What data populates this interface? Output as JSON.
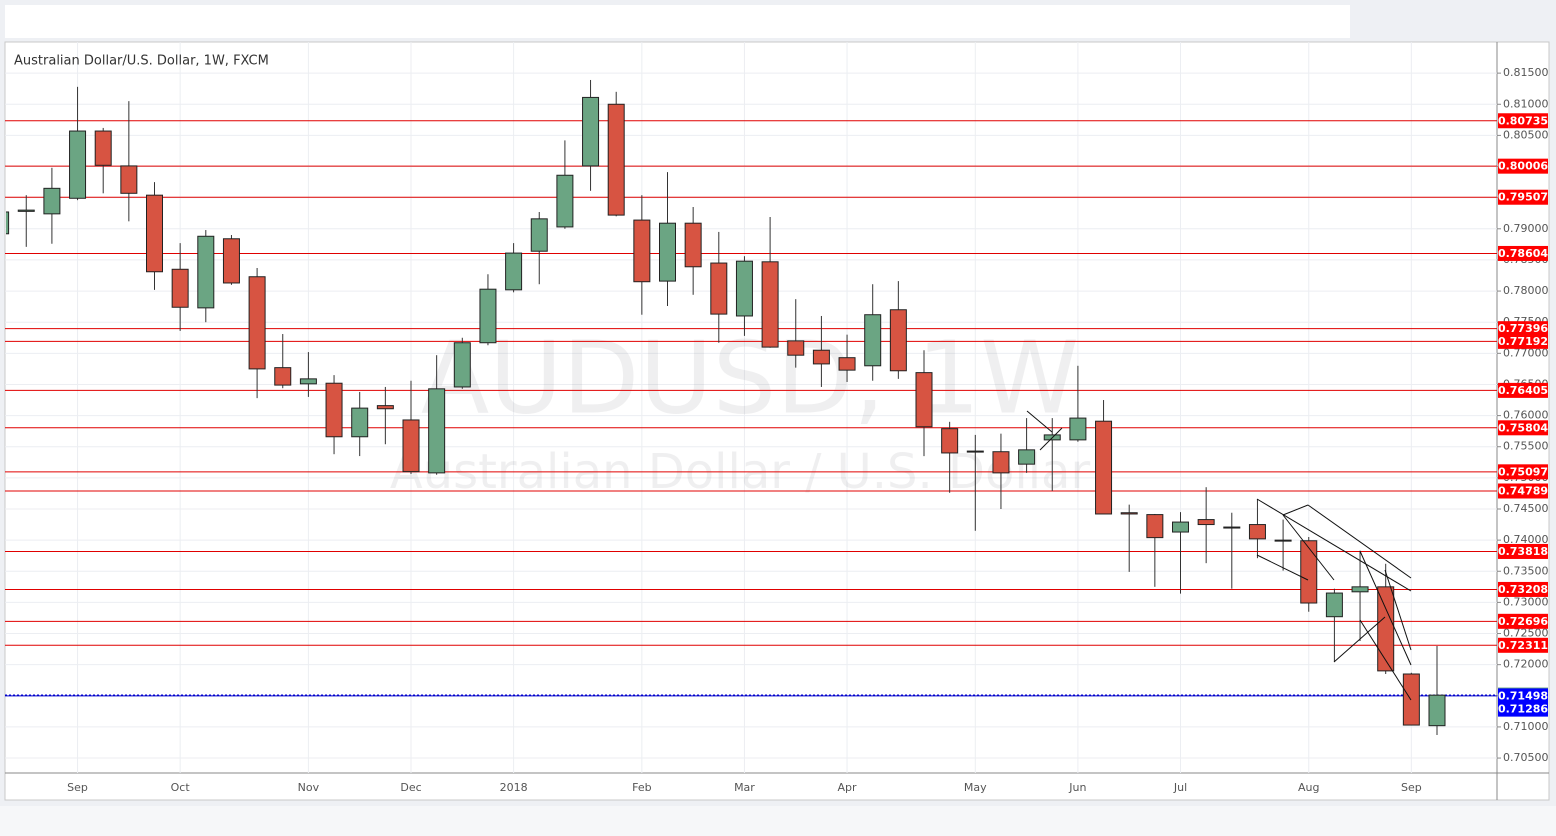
{
  "chart_data": {
    "type": "candlestick",
    "title": "Australian Dollar/U.S. Dollar, 1W, FXCM",
    "watermark": "AUDUSD, 1W",
    "watermark_subtitle": "Australian Dollar / U.S. Dollar",
    "categories": [
      null,
      null,
      null,
      "Sep",
      null,
      null,
      null,
      "Oct",
      null,
      null,
      null,
      null,
      "Nov",
      null,
      null,
      null,
      "Dec",
      null,
      null,
      null,
      "2018",
      null,
      null,
      null,
      null,
      "Feb",
      null,
      null,
      null,
      "Mar",
      null,
      null,
      null,
      "Apr",
      null,
      null,
      null,
      null,
      "May",
      null,
      null,
      null,
      "Jun",
      null,
      null,
      null,
      "Jul",
      null,
      null,
      null,
      null,
      "Aug",
      null,
      null,
      null,
      "Sep",
      null
    ],
    "open": [
      0.7892,
      0.7928,
      0.7924,
      0.7949,
      0.8057,
      0.8001,
      0.7954,
      0.7835,
      0.7773,
      0.7884,
      0.7823,
      0.7677,
      0.7651,
      0.7652,
      0.7566,
      0.7616,
      0.7593,
      0.7508,
      0.7646,
      0.7717,
      0.7802,
      0.7864,
      0.7903,
      0.8001,
      0.81,
      0.7914,
      0.7816,
      0.7909,
      0.7845,
      0.776,
      0.7847,
      0.772,
      0.7705,
      0.7693,
      0.768,
      0.777,
      0.7669,
      0.7579,
      0.7543,
      0.7542,
      0.7522,
      0.7561,
      0.7561,
      0.7591,
      0.7444,
      0.7441,
      0.7413,
      0.7433,
      0.7421,
      0.7425,
      0.74,
      0.7399,
      0.7277,
      0.7317,
      0.7325,
      0.7185,
      0.7102
    ],
    "high": [
      0.7946,
      0.7954,
      0.7998,
      0.8128,
      0.8062,
      0.8105,
      0.7975,
      0.7877,
      0.7898,
      0.789,
      0.7837,
      0.7731,
      0.7702,
      0.7665,
      0.7638,
      0.7646,
      0.7656,
      0.7697,
      0.7725,
      0.7827,
      0.7877,
      0.7927,
      0.8042,
      0.8139,
      0.812,
      0.7954,
      0.7991,
      0.7935,
      0.7895,
      0.7856,
      0.7919,
      0.7787,
      0.776,
      0.773,
      0.7811,
      0.7816,
      0.7705,
      0.759,
      0.7569,
      0.7571,
      0.7596,
      0.7596,
      0.768,
      0.7625,
      0.7457,
      0.7442,
      0.7445,
      0.7485,
      0.7444,
      0.7466,
      0.7433,
      0.7405,
      0.7322,
      0.7383,
      0.7362,
      0.7187,
      0.723
    ],
    "low": [
      0.7882,
      0.7871,
      0.7876,
      0.7946,
      0.7957,
      0.7912,
      0.7802,
      0.7736,
      0.775,
      0.781,
      0.7628,
      0.7644,
      0.763,
      0.7538,
      0.7535,
      0.7554,
      0.7506,
      0.7505,
      0.7643,
      0.7713,
      0.7798,
      0.7811,
      0.79,
      0.7961,
      0.792,
      0.7762,
      0.7776,
      0.7794,
      0.7717,
      0.7728,
      0.7709,
      0.7677,
      0.7646,
      0.7654,
      0.7656,
      0.7659,
      0.7535,
      0.7476,
      0.7415,
      0.745,
      0.7508,
      0.7479,
      0.7558,
      0.7442,
      0.7349,
      0.7325,
      0.7314,
      0.7363,
      0.7322,
      0.7371,
      0.7351,
      0.7285,
      0.7205,
      0.7238,
      0.7185,
      0.7103,
      0.7087
    ],
    "close": [
      0.7927,
      0.793,
      0.7965,
      0.8057,
      0.8002,
      0.7957,
      0.7831,
      0.7774,
      0.7888,
      0.7813,
      0.7675,
      0.7649,
      0.7659,
      0.7566,
      0.7612,
      0.7611,
      0.751,
      0.7643,
      0.7717,
      0.7803,
      0.7861,
      0.7916,
      0.7986,
      0.8111,
      0.7922,
      0.7815,
      0.7909,
      0.7839,
      0.7763,
      0.7848,
      0.771,
      0.7697,
      0.7683,
      0.7673,
      0.7762,
      0.7672,
      0.7582,
      0.754,
      0.7542,
      0.7508,
      0.7545,
      0.7569,
      0.7596,
      0.7442,
      0.7442,
      0.7404,
      0.7429,
      0.7425,
      0.742,
      0.7402,
      0.7399,
      0.7299,
      0.7315,
      0.7325,
      0.719,
      0.7103,
      0.7151
    ],
    "up_color": "#6ba583",
    "down_color": "#d75442",
    "ylim": [
      0.7026,
      0.82
    ],
    "yticks": [
      {
        "value": 0.705,
        "label": "0.70500"
      },
      {
        "value": 0.71,
        "label": "0.71000"
      },
      {
        "value": 0.715,
        "label": "0.71500"
      },
      {
        "value": 0.72,
        "label": "0.72000"
      },
      {
        "value": 0.725,
        "label": "0.72500"
      },
      {
        "value": 0.73,
        "label": "0.73000"
      },
      {
        "value": 0.735,
        "label": "0.73500"
      },
      {
        "value": 0.74,
        "label": "0.74000"
      },
      {
        "value": 0.745,
        "label": "0.74500"
      },
      {
        "value": 0.75,
        "label": "0.75000"
      },
      {
        "value": 0.755,
        "label": "0.75500"
      },
      {
        "value": 0.76,
        "label": "0.76000"
      },
      {
        "value": 0.765,
        "label": "0.76500"
      },
      {
        "value": 0.77,
        "label": "0.77000"
      },
      {
        "value": 0.775,
        "label": "0.77500"
      },
      {
        "value": 0.78,
        "label": "0.78000"
      },
      {
        "value": 0.785,
        "label": "0.78500"
      },
      {
        "value": 0.79,
        "label": "0.79000"
      },
      {
        "value": 0.795,
        "label": "0.79500"
      },
      {
        "value": 0.8,
        "label": "0.80000"
      },
      {
        "value": 0.805,
        "label": "0.80500"
      },
      {
        "value": 0.81,
        "label": "0.81000"
      },
      {
        "value": 0.815,
        "label": "0.81500"
      }
    ],
    "grid": true,
    "levels": [
      {
        "value": 0.80735,
        "color": "#ff0000",
        "line_color": "#e00000",
        "line_style": "solid"
      },
      {
        "value": 0.80006,
        "color": "#ff0000",
        "line_color": "#e00000",
        "line_style": "solid"
      },
      {
        "value": 0.79507,
        "color": "#ff0000",
        "line_color": "#e00000",
        "line_style": "solid"
      },
      {
        "value": 0.78604,
        "color": "#ff0000",
        "line_color": "#e00000",
        "line_style": "solid"
      },
      {
        "value": 0.77396,
        "color": "#ff0000",
        "line_color": "#e00000",
        "line_style": "solid"
      },
      {
        "value": 0.77192,
        "color": "#ff0000",
        "line_color": "#e00000",
        "line_style": "solid"
      },
      {
        "value": 0.76405,
        "color": "#ff0000",
        "line_color": "#e00000",
        "line_style": "solid"
      },
      {
        "value": 0.75804,
        "color": "#ff0000",
        "line_color": "#e00000",
        "line_style": "solid"
      },
      {
        "value": 0.75097,
        "color": "#ff0000",
        "line_color": "#e00000",
        "line_style": "solid"
      },
      {
        "value": 0.74789,
        "color": "#ff0000",
        "line_color": "#e00000",
        "line_style": "solid"
      },
      {
        "value": 0.73818,
        "color": "#ff0000",
        "line_color": "#e00000",
        "line_style": "solid"
      },
      {
        "value": 0.73208,
        "color": "#ff0000",
        "line_color": "#e00000",
        "line_style": "solid"
      },
      {
        "value": 0.72696,
        "color": "#ff0000",
        "line_color": "#e00000",
        "line_style": "solid"
      },
      {
        "value": 0.72311,
        "color": "#ff0000",
        "line_color": "#e00000",
        "line_style": "solid"
      },
      {
        "value": 0.71512,
        "color": "#6ba583",
        "line_color": "#0000cc",
        "line_style": "dotted"
      },
      {
        "value": 0.71498,
        "color": "#0000ff",
        "line_color": "#0000cc",
        "line_style": "solid"
      },
      {
        "value": 0.71286,
        "color": "#0000ff",
        "line_color": "#0000cc",
        "line_style": "none"
      }
    ]
  }
}
